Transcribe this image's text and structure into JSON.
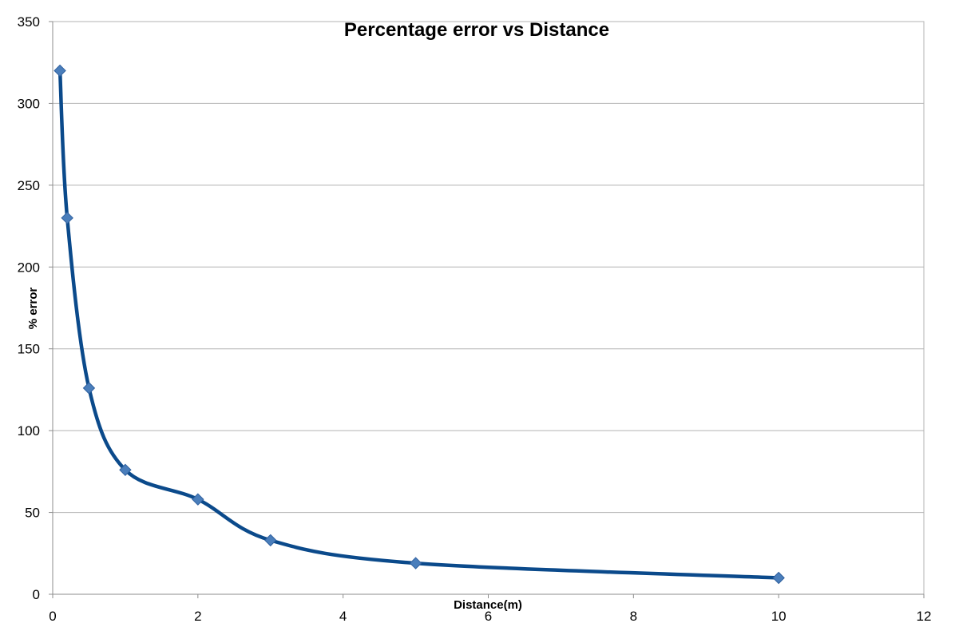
{
  "chart_data": {
    "type": "line",
    "title": "Percentage error vs Distance",
    "xlabel": "Distance(m)",
    "ylabel": "% error",
    "xlim": [
      0,
      12
    ],
    "ylim": [
      0,
      350
    ],
    "x_ticks": [
      0,
      2,
      4,
      6,
      8,
      10,
      12
    ],
    "y_ticks": [
      0,
      50,
      100,
      150,
      200,
      250,
      300,
      350
    ],
    "grid": "horizontal",
    "legend": "none",
    "smoothed": true,
    "series": [
      {
        "x": [
          0.1,
          0.2,
          0.5,
          1,
          2,
          3,
          5,
          10
        ],
        "y": [
          320,
          230,
          126,
          76,
          58,
          33,
          19,
          10
        ]
      }
    ],
    "colors": {
      "line": "#0b4a8b",
      "marker_fill": "#4a7ebb",
      "marker_stroke": "#2e5f9e"
    }
  }
}
